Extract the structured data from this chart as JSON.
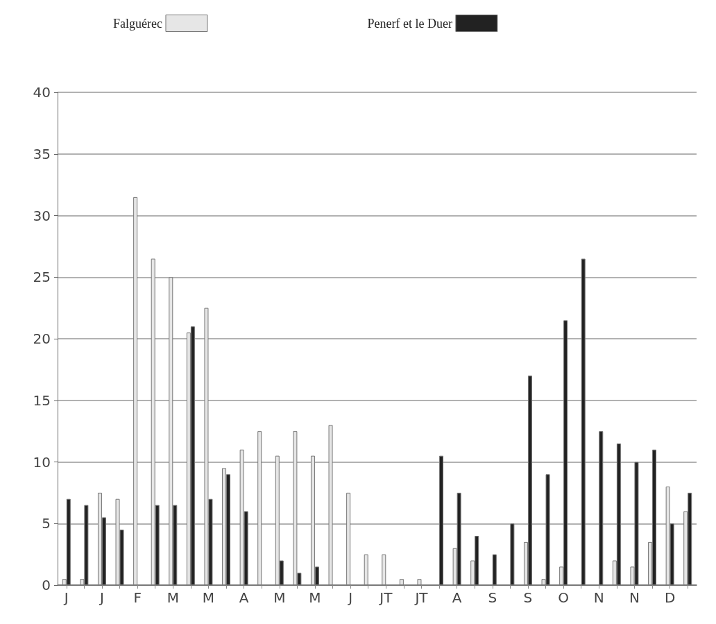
{
  "chart_data": {
    "type": "bar",
    "categories": [
      "J",
      null,
      "J",
      null,
      "F",
      null,
      "M",
      null,
      "M",
      null,
      "A",
      null,
      "M",
      null,
      "M",
      null,
      "J",
      null,
      "JT",
      null,
      "JT",
      null,
      "A",
      null,
      "S",
      null,
      "S",
      null,
      "O",
      null,
      "N",
      null,
      "N",
      null,
      "D",
      null
    ],
    "series": [
      {
        "name": "Falguérec",
        "color": "#e6e6e6",
        "values": [
          0.5,
          0.5,
          7.5,
          7,
          31.5,
          26.5,
          25,
          20.5,
          22.5,
          9.5,
          11,
          12.5,
          10.5,
          12.5,
          10.5,
          13,
          7.5,
          2.5,
          2.5,
          0.5,
          0.5,
          null,
          3,
          2,
          null,
          null,
          3.5,
          0.5,
          1.5,
          null,
          null,
          2,
          1.5,
          3.5,
          8,
          6
        ]
      },
      {
        "name": "Penerf et le Duer",
        "color": "#222222",
        "values": [
          7,
          6.5,
          5.5,
          4.5,
          null,
          6.5,
          6.5,
          21,
          7,
          9,
          6,
          null,
          2,
          1,
          1.5,
          null,
          null,
          null,
          null,
          null,
          null,
          10.5,
          7.5,
          4,
          2.5,
          5,
          17,
          9,
          21.5,
          26.5,
          12.5,
          11.5,
          10,
          11,
          5,
          7.5
        ]
      }
    ],
    "ylim": [
      0,
      40
    ],
    "yticks": [
      0,
      5,
      10,
      15,
      20,
      25,
      30,
      35,
      40
    ],
    "grid": "y",
    "legend": "top"
  }
}
